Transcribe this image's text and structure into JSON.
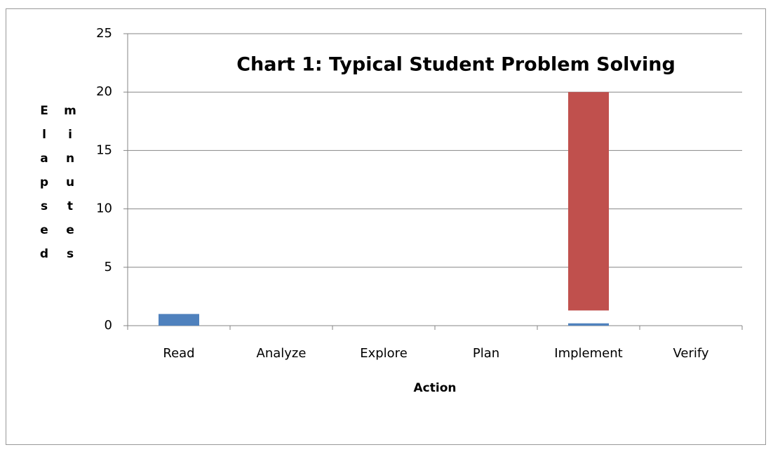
{
  "chart_data": {
    "type": "stacked_bar",
    "title": "Chart 1: Typical Student Problem Solving",
    "x_label": "Action",
    "y_label": "Elapsed minutes",
    "categories": [
      "Read",
      "Analyze",
      "Explore",
      "Plan",
      "Implement",
      "Verify"
    ],
    "series": [
      {
        "color": "#4f81bd",
        "values": [
          1,
          0,
          0,
          0,
          0.2,
          0
        ]
      },
      {
        "color": "none",
        "values": [
          0,
          0,
          0,
          0,
          1.1,
          0
        ]
      },
      {
        "color": "#c0504d",
        "values": [
          0,
          0,
          0,
          0,
          18.7,
          0
        ]
      }
    ],
    "ylim": [
      0,
      25
    ],
    "yticks": [
      0,
      5,
      10,
      15,
      20,
      25
    ],
    "grid": true
  }
}
